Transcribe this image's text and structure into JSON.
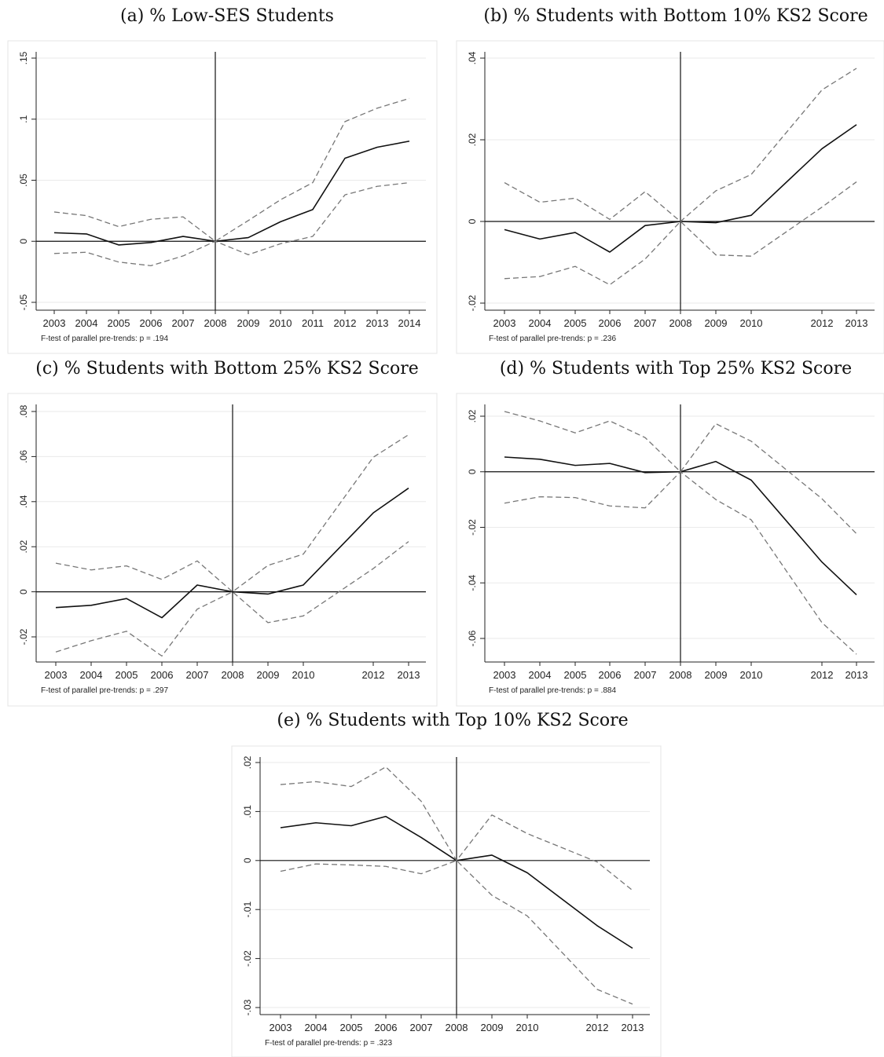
{
  "chart_data": [
    {
      "type": "line",
      "title": "(a) % Low-SES Students",
      "x": [
        2003,
        2004,
        2005,
        2006,
        2007,
        2008,
        2009,
        2010,
        2011,
        2012,
        2013,
        2014
      ],
      "xticks": [
        "2003",
        "2004",
        "2005",
        "2006",
        "2007",
        "2008",
        "2009",
        "2010",
        "2011",
        "2012",
        "2013",
        "2014"
      ],
      "yticks": [
        "-.05",
        "0",
        ".05",
        ".1",
        ".15"
      ],
      "ylim": [
        -0.05,
        0.15
      ],
      "series": [
        {
          "role": "estimate",
          "values": [
            0.007,
            0.006,
            -0.003,
            -0.001,
            0.004,
            0.0,
            0.003,
            0.016,
            0.026,
            0.068,
            0.077,
            0.082
          ]
        },
        {
          "role": "upper_ci",
          "values": [
            0.024,
            0.021,
            0.012,
            0.018,
            0.02,
            0.0,
            0.017,
            0.034,
            0.048,
            0.098,
            0.109,
            0.117
          ]
        },
        {
          "role": "lower_ci",
          "values": [
            -0.01,
            -0.009,
            -0.017,
            -0.02,
            -0.012,
            0.0,
            -0.011,
            -0.002,
            0.004,
            0.038,
            0.045,
            0.048
          ]
        }
      ],
      "note": "F-test of parallel pre-trends: p = .194"
    },
    {
      "type": "line",
      "title": "(b) % Students with Bottom 10% KS2 Score",
      "x": [
        2003,
        2004,
        2005,
        2006,
        2007,
        2008,
        2009,
        2010,
        2012,
        2013
      ],
      "xticks": [
        "2003",
        "2004",
        "2005",
        "2006",
        "2007",
        "2008",
        "2009",
        "2010",
        "2012",
        "2013"
      ],
      "yticks": [
        "-.02",
        "0",
        ".02",
        ".04"
      ],
      "ylim": [
        -0.02,
        0.04
      ],
      "series": [
        {
          "role": "estimate",
          "values": [
            -0.002,
            -0.0043,
            -0.0027,
            -0.0075,
            -0.001,
            0.0,
            -0.0003,
            0.0015,
            0.0178,
            0.0237
          ]
        },
        {
          "role": "upper_ci",
          "values": [
            0.0095,
            0.0047,
            0.0057,
            0.0005,
            0.0073,
            0.0,
            0.0075,
            0.0115,
            0.0322,
            0.0375
          ]
        },
        {
          "role": "lower_ci",
          "values": [
            -0.014,
            -0.0135,
            -0.011,
            -0.0155,
            -0.0092,
            0.0,
            -0.0082,
            -0.0085,
            0.0035,
            0.0097
          ]
        }
      ],
      "note": "F-test of parallel pre-trends: p = .236"
    },
    {
      "type": "line",
      "title": "(c) % Students with Bottom 25% KS2 Score",
      "x": [
        2003,
        2004,
        2005,
        2006,
        2007,
        2008,
        2009,
        2010,
        2012,
        2013
      ],
      "xticks": [
        "2003",
        "2004",
        "2005",
        "2006",
        "2007",
        "2008",
        "2009",
        "2010",
        "2012",
        "2013"
      ],
      "yticks": [
        "-.02",
        "0",
        ".02",
        ".04",
        ".06",
        ".08"
      ],
      "ylim": [
        -0.02,
        0.08
      ],
      "series": [
        {
          "role": "estimate",
          "values": [
            -0.007,
            -0.006,
            -0.003,
            -0.0115,
            0.003,
            0.0,
            -0.001,
            0.003,
            0.035,
            0.046
          ]
        },
        {
          "role": "upper_ci",
          "values": [
            0.0127,
            0.0097,
            0.0115,
            0.0055,
            0.0137,
            0.0,
            0.0117,
            0.0167,
            0.0597,
            0.0697
          ]
        },
        {
          "role": "lower_ci",
          "values": [
            -0.0267,
            -0.0217,
            -0.0175,
            -0.0285,
            -0.0077,
            0.0,
            -0.0137,
            -0.0107,
            0.0103,
            0.0223
          ]
        }
      ],
      "note": "F-test of parallel pre-trends: p = .297"
    },
    {
      "type": "line",
      "title": "(d) % Students with Top 25% KS2 Score",
      "x": [
        2003,
        2004,
        2005,
        2006,
        2007,
        2008,
        2009,
        2010,
        2012,
        2013
      ],
      "xticks": [
        "2003",
        "2004",
        "2005",
        "2006",
        "2007",
        "2008",
        "2009",
        "2010",
        "2012",
        "2013"
      ],
      "yticks": [
        "-.06",
        "-.04",
        "-.02",
        "0",
        ".02"
      ],
      "ylim": [
        -0.06,
        0.02
      ],
      "series": [
        {
          "role": "estimate",
          "values": [
            0.0053,
            0.0045,
            0.0023,
            0.003,
            -0.0003,
            0.0,
            0.0037,
            -0.003,
            -0.0325,
            -0.0443
          ]
        },
        {
          "role": "upper_ci",
          "values": [
            0.0217,
            0.0183,
            0.014,
            0.0183,
            0.0123,
            0.0,
            0.0173,
            0.011,
            -0.0097,
            -0.0223
          ]
        },
        {
          "role": "lower_ci",
          "values": [
            -0.0113,
            -0.009,
            -0.0093,
            -0.0123,
            -0.013,
            0.0,
            -0.01,
            -0.0173,
            -0.0543,
            -0.0657
          ]
        }
      ],
      "note": "F-test of parallel pre-trends: p = .884"
    },
    {
      "type": "line",
      "title": "(e) % Students with Top 10% KS2 Score",
      "x": [
        2003,
        2004,
        2005,
        2006,
        2007,
        2008,
        2009,
        2010,
        2012,
        2013
      ],
      "xticks": [
        "2003",
        "2004",
        "2005",
        "2006",
        "2007",
        "2008",
        "2009",
        "2010",
        "2012",
        "2013"
      ],
      "yticks": [
        "-.03",
        "-.02",
        "-.01",
        "0",
        ".01",
        ".02"
      ],
      "ylim": [
        -0.03,
        0.02
      ],
      "series": [
        {
          "role": "estimate",
          "values": [
            0.0067,
            0.0077,
            0.0071,
            0.009,
            0.0047,
            0.0,
            0.0011,
            -0.0025,
            -0.0133,
            -0.0179
          ]
        },
        {
          "role": "upper_ci",
          "values": [
            0.0155,
            0.0161,
            0.0151,
            0.0191,
            0.0121,
            0.0,
            0.0093,
            0.0055,
            -0.0003,
            -0.0061
          ]
        },
        {
          "role": "lower_ci",
          "values": [
            -0.0022,
            -0.0007,
            -0.0009,
            -0.0012,
            -0.0027,
            0.0,
            -0.0071,
            -0.0113,
            -0.0263,
            -0.0293
          ]
        }
      ],
      "note": "F-test of parallel pre-trends: p = .323"
    }
  ]
}
